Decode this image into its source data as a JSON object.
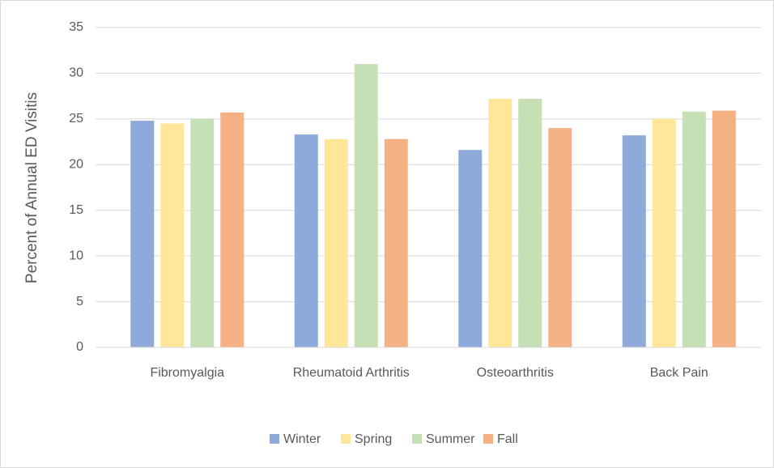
{
  "chart_data": {
    "type": "bar",
    "y_label": "Percent of Annual ED Visitis",
    "categories": [
      "Fibromyalgia",
      "Rheumatoid Arthritis",
      "Osteoarthritis",
      "Back Pain"
    ],
    "series": [
      {
        "name": "Winter",
        "color": "#8eaadb",
        "values": [
          24.8,
          23.3,
          21.6,
          23.2
        ]
      },
      {
        "name": "Spring",
        "color": "#ffe699",
        "values": [
          24.5,
          22.8,
          27.2,
          25.0
        ]
      },
      {
        "name": "Summer",
        "color": "#c5e0b4",
        "values": [
          25.0,
          31.0,
          27.2,
          25.8
        ]
      },
      {
        "name": "Fall",
        "color": "#f4b183",
        "values": [
          25.7,
          22.8,
          24.0,
          25.9
        ]
      }
    ],
    "ylim": [
      0,
      35
    ],
    "yticks": [
      0,
      5,
      10,
      15,
      20,
      25,
      30,
      35
    ],
    "grid": true,
    "legend": "bottom"
  }
}
